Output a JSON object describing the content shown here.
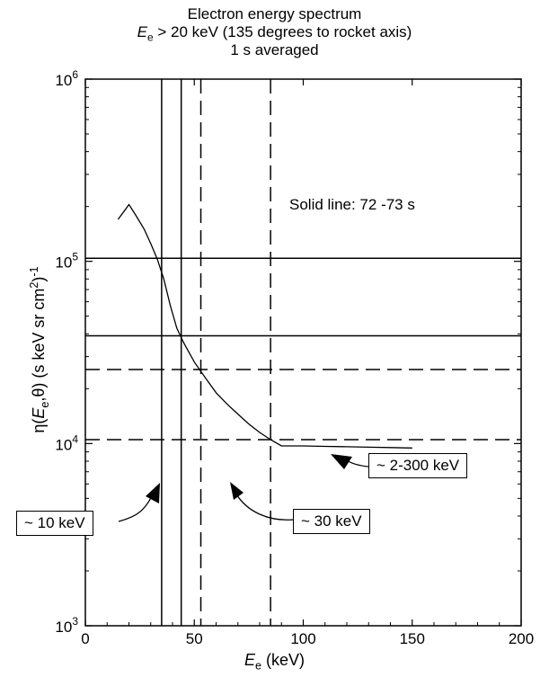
{
  "title": {
    "line1": "Electron energy spectrum",
    "line2_var": "E",
    "line2_sub": "e",
    "line2_rest": " > 20 keV (135 degrees to rocket axis)",
    "line3": "1 s averaged"
  },
  "xaxis": {
    "var": "E",
    "sub": "e",
    "unit": " (keV)",
    "ticks": [
      {
        "v": 0,
        "label": "0"
      },
      {
        "v": 50,
        "label": "50"
      },
      {
        "v": 100,
        "label": "100"
      },
      {
        "v": 150,
        "label": "150"
      },
      {
        "v": 200,
        "label": "200"
      }
    ]
  },
  "yaxis": {
    "p1": "η(",
    "var": "E",
    "sub": "e",
    "p2": ",θ) (s keV sr cm",
    "sup1": "2",
    "p3": ")",
    "sup2": "-1",
    "ticks": [
      {
        "v": 1000,
        "base": "10",
        "exp": "3"
      },
      {
        "v": 10000,
        "base": "10",
        "exp": "4"
      },
      {
        "v": 100000,
        "base": "10",
        "exp": "5"
      },
      {
        "v": 1000000,
        "base": "10",
        "exp": "6"
      }
    ]
  },
  "annotations": {
    "solid_line_note": "Solid line: 72 -73 s",
    "box_10kev": "~ 10 keV",
    "box_30kev": "~ 30 keV",
    "box_300kev": "~ 2-300 keV"
  },
  "chart_data": {
    "type": "line",
    "title": "Electron energy spectrum E_e > 20 keV (135 degrees to rocket axis) 1 s averaged",
    "xlabel": "E_e (keV)",
    "ylabel": "η(E_e,θ) (s keV sr cm^2)^-1",
    "xlim": [
      0,
      200
    ],
    "ylim": [
      1000,
      1000000
    ],
    "yscale": "log",
    "grid": false,
    "series": [
      {
        "name": "Solid line: 72 -73 s",
        "x": [
          15,
          18,
          20,
          23,
          27,
          30,
          33,
          36,
          39,
          42,
          45,
          50,
          55,
          60,
          65,
          70,
          75,
          80,
          85,
          90,
          100,
          110,
          120,
          130,
          140,
          150
        ],
        "y": [
          170000,
          190000,
          205000,
          180000,
          150000,
          125000,
          103000,
          80000,
          57000,
          43000,
          36000,
          28000,
          23000,
          19000,
          16500,
          14500,
          12800,
          11500,
          10500,
          9700,
          9700,
          9650,
          9600,
          9550,
          9500,
          9450
        ]
      }
    ],
    "reference_lines": {
      "solid_vertical_x": [
        35,
        44
      ],
      "solid_horizontal_y": [
        104000,
        39000
      ],
      "dashed_vertical_x": [
        53,
        85
      ],
      "dashed_horizontal_y": [
        25500,
        10500
      ]
    },
    "callouts": [
      {
        "label": "~ 10 keV",
        "arrow_to": {
          "x": 35,
          "y": 6000
        }
      },
      {
        "label": "~ 30 keV",
        "arrow_to": {
          "x": 68,
          "y": 5800
        }
      },
      {
        "label": "~ 2-300 keV",
        "arrow_to": {
          "x": 115,
          "y": 8500
        }
      }
    ]
  }
}
